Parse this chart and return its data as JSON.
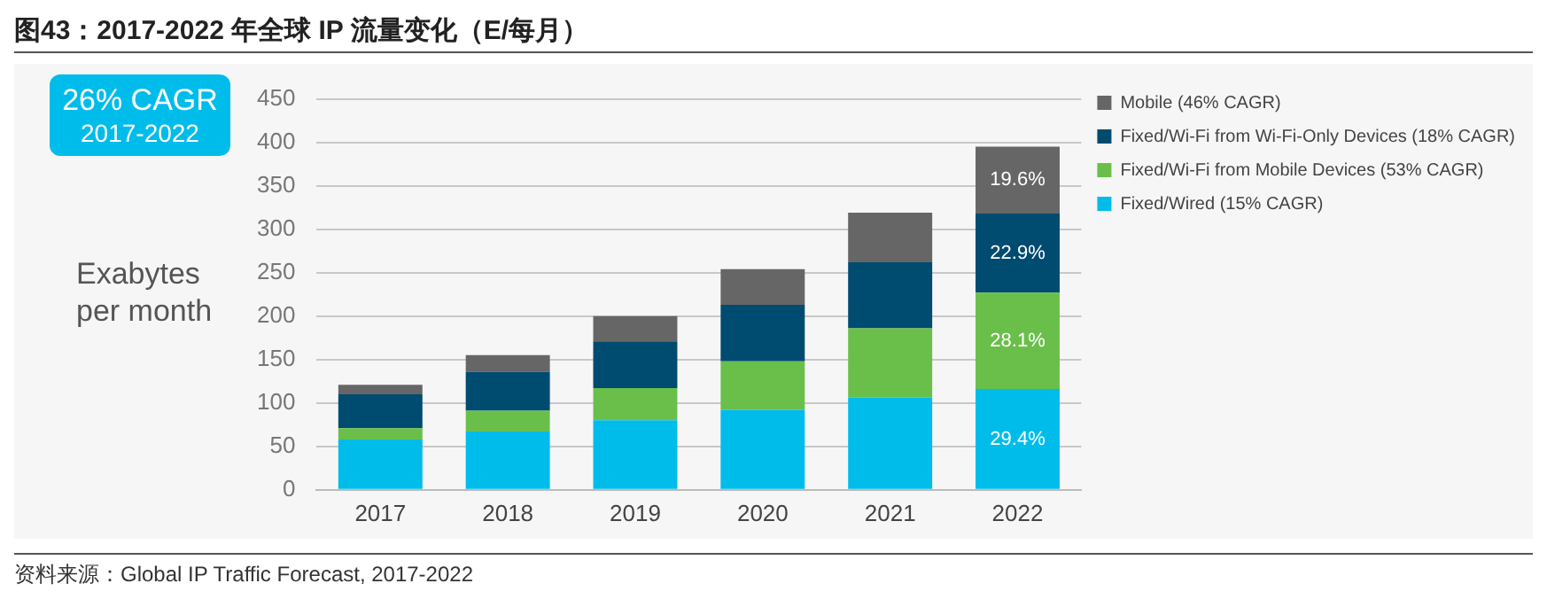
{
  "chart_data": {
    "type": "bar",
    "title": "图43：2017-2022 年全球 IP 流量变化（E/每月）",
    "ylabel": "Exabytes per month",
    "annotations": [
      "26% CAGR 2017-2022",
      "资料来源：Global IP Traffic Forecast, 2017-2022",
      {
        "text": "29.4%",
        "x": "2022",
        "y": 116
      },
      {
        "text": "28.1%",
        "x": "2022",
        "y": 227
      },
      {
        "text": "22.9%",
        "x": "2022",
        "y": 318
      },
      {
        "text": "19.6%",
        "x": "2022",
        "y": 395
      }
    ],
    "categories": [
      "2017",
      "2018",
      "2019",
      "2020",
      "2021",
      "2022"
    ],
    "stacked": true,
    "ylim": [
      0,
      450
    ],
    "yticks": [
      0,
      50,
      100,
      150,
      200,
      250,
      300,
      350,
      400,
      450
    ],
    "grid": "y",
    "legend": "right",
    "series": [
      {
        "name": "Fixed/Wired (15% CAGR)",
        "color": "#00bceb",
        "values": [
          58,
          67,
          80,
          92,
          106,
          116
        ]
      },
      {
        "name": "Fixed/Wi-Fi from Mobile Devices (53% CAGR)",
        "color": "#6abf4b",
        "values": [
          13,
          24,
          37,
          56,
          80,
          111
        ]
      },
      {
        "name": "Fixed/Wi-Fi from Wi-Fi-Only Devices (18% CAGR)",
        "color": "#004b70",
        "values": [
          39,
          45,
          54,
          65,
          76,
          91
        ]
      },
      {
        "name": "Mobile (46% CAGR)",
        "color": "#666666",
        "values": [
          11,
          19,
          29,
          41,
          57,
          77
        ]
      }
    ]
  }
}
